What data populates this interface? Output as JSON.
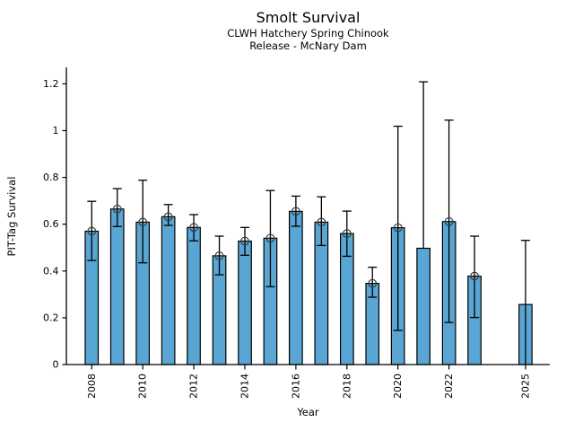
{
  "figure": {
    "title": "Smolt Survival",
    "subtitle1": "CLWH Hatchery Spring Chinook",
    "subtitle2": "Release - McNary Dam",
    "xlabel": "Year",
    "ylabel": "PIT-Tag Survival"
  },
  "chart_data": {
    "type": "bar",
    "title": "Smolt Survival",
    "subtitle": [
      "CLWH Hatchery Spring Chinook",
      "Release - McNary Dam"
    ],
    "xlabel": "Year",
    "ylabel": "PIT-Tag Survival",
    "ylim": [
      0,
      1.27
    ],
    "grid": false,
    "legend": "none",
    "ytick_values": [
      0,
      0.2,
      0.4,
      0.6,
      0.8,
      1,
      1.2
    ],
    "ytick_labels": [
      "0",
      "0.2",
      "0.4",
      "0.6",
      "0.8",
      "1",
      "1.2"
    ],
    "xtick_years": [
      2008,
      2010,
      2012,
      2014,
      2016,
      2018,
      2020,
      2022,
      2025
    ],
    "bar_color": "#59a5d3",
    "bar_edge_color": "#000000",
    "error_color": "#000000",
    "marker_style": "open-circle",
    "marker_edge_color": "#3a3a3a",
    "series": [
      {
        "year": 2008,
        "value": 0.57,
        "ci_low": 0.445,
        "ci_high": 0.698,
        "marker": true
      },
      {
        "year": 2009,
        "value": 0.665,
        "ci_low": 0.59,
        "ci_high": 0.752,
        "marker": true
      },
      {
        "year": 2010,
        "value": 0.609,
        "ci_low": 0.435,
        "ci_high": 0.788,
        "marker": true
      },
      {
        "year": 2011,
        "value": 0.632,
        "ci_low": 0.595,
        "ci_high": 0.684,
        "marker": true
      },
      {
        "year": 2012,
        "value": 0.586,
        "ci_low": 0.529,
        "ci_high": 0.641,
        "marker": true
      },
      {
        "year": 2013,
        "value": 0.465,
        "ci_low": 0.384,
        "ci_high": 0.549,
        "marker": true
      },
      {
        "year": 2014,
        "value": 0.528,
        "ci_low": 0.467,
        "ci_high": 0.586,
        "marker": true
      },
      {
        "year": 2015,
        "value": 0.54,
        "ci_low": 0.333,
        "ci_high": 0.744,
        "marker": true
      },
      {
        "year": 2016,
        "value": 0.655,
        "ci_low": 0.591,
        "ci_high": 0.72,
        "marker": true
      },
      {
        "year": 2017,
        "value": 0.609,
        "ci_low": 0.509,
        "ci_high": 0.717,
        "marker": true
      },
      {
        "year": 2018,
        "value": 0.56,
        "ci_low": 0.463,
        "ci_high": 0.656,
        "marker": true
      },
      {
        "year": 2019,
        "value": 0.347,
        "ci_low": 0.288,
        "ci_high": 0.416,
        "marker": true
      },
      {
        "year": 2020,
        "value": 0.585,
        "ci_low": 0.146,
        "ci_high": 1.019,
        "marker": true
      },
      {
        "year": 2021,
        "value": 0.497,
        "ci_low": null,
        "ci_high": 1.209,
        "marker": false
      },
      {
        "year": 2022,
        "value": 0.611,
        "ci_low": 0.18,
        "ci_high": 1.045,
        "marker": true
      },
      {
        "year": 2023,
        "value": 0.378,
        "ci_low": 0.201,
        "ci_high": 0.549,
        "marker": true
      },
      {
        "year": 2025,
        "value": 0.257,
        "ci_low": 0.0,
        "ci_high": 0.531,
        "marker": false
      }
    ]
  }
}
